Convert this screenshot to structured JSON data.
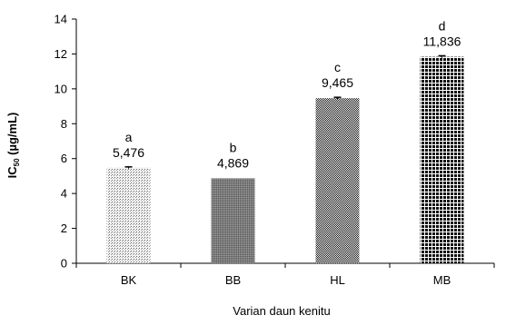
{
  "chart_data": {
    "type": "bar",
    "categories": [
      "BK",
      "BB",
      "HL",
      "MB"
    ],
    "values": [
      5.476,
      4.869,
      9.465,
      11.836
    ],
    "value_labels": [
      "5,476",
      "4,869",
      "9,465",
      "11,836"
    ],
    "significance": [
      "a",
      "b",
      "c",
      "d"
    ],
    "errors": [
      0.05,
      0.0,
      0.05,
      0.06
    ],
    "xlabel": "Varian daun kenitu",
    "ylabel_main": "IC",
    "ylabel_sub": "50",
    "ylabel_unit": " (µg/mL)",
    "ylim": [
      0,
      14
    ],
    "yticks": [
      0,
      2,
      4,
      6,
      8,
      10,
      12,
      14
    ],
    "grid": false,
    "legend": "none",
    "bar_patterns": [
      "dots-light",
      "fine-gray",
      "checker-dense",
      "grid-squares"
    ]
  }
}
